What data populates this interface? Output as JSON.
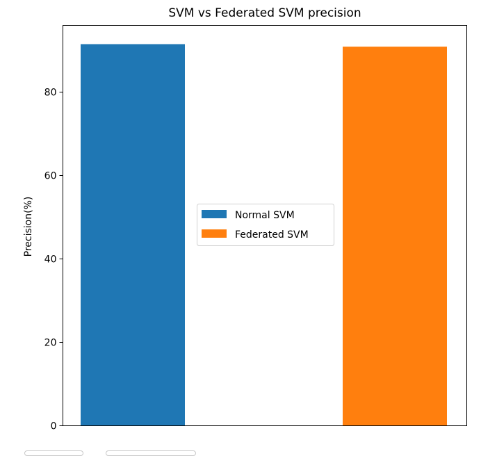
{
  "chart_data": {
    "type": "bar",
    "title": "SVM vs Federated SVM precision",
    "xlabel": "",
    "ylabel": "Precision(%)",
    "ylim": [
      0,
      96
    ],
    "yticks": [
      0,
      20,
      40,
      60,
      80
    ],
    "grid": false,
    "legend_position": "center",
    "series": [
      {
        "name": "Normal SVM",
        "values": [
          91.5
        ],
        "color": "#1f77b4"
      },
      {
        "name": "Federated SVM",
        "values": [
          90.9
        ],
        "color": "#ff7f0e"
      }
    ]
  }
}
